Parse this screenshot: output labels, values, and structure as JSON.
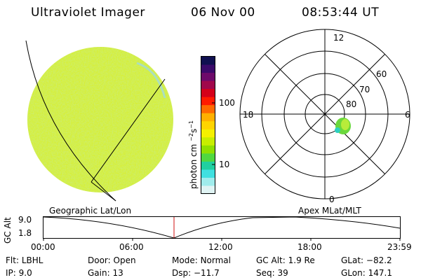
{
  "header": {
    "title": "Ultraviolet Imager",
    "date": "06 Nov 00",
    "time": "08:53:44 UT"
  },
  "colorbar": {
    "unit_label": "photon cm",
    "unit_exp1": "−2",
    "unit_mid": "s",
    "unit_exp2": "−1",
    "ticks": [
      "100",
      "10"
    ],
    "colors": [
      "#101050",
      "#3b0a6a",
      "#6d0a6a",
      "#a0084b",
      "#d4001a",
      "#ff1a00",
      "#ff6a00",
      "#ffb000",
      "#ffd400",
      "#f5f000",
      "#c8ee00",
      "#90e000",
      "#50d840",
      "#20d0a0",
      "#40e0e0",
      "#a0ecec",
      "#e0f4f4"
    ]
  },
  "left_image": {
    "label": "Geographic Lat/Lon",
    "disk_color": "#d6ef3a"
  },
  "polar_plot": {
    "label": "Apex MLat/MLT",
    "mlt_labels": {
      "top": "12",
      "left": "18",
      "right": "6",
      "bottom": "0"
    },
    "mlat_labels": [
      "60",
      "70",
      "80"
    ],
    "blob_color": "#6ad83c"
  },
  "alt_plot": {
    "ylabel": "GC Alt",
    "y_ticks": [
      "9.0",
      "1.8"
    ],
    "x_ticks": [
      "00:00",
      "06:00",
      "12:00",
      "18:00",
      "23:59"
    ]
  },
  "footer": {
    "flt_label": "Flt:",
    "flt_value": "LBHL",
    "ip_label": "IP:",
    "ip_value": "9.0",
    "door_label": "Door:",
    "door_value": "Open",
    "gain_label": "Gain:",
    "gain_value": "13",
    "mode_label": "Mode:",
    "mode_value": "Normal",
    "dsp_label": "Dsp:",
    "dsp_value": "−11.7",
    "gcalt_label": "GC Alt:",
    "gcalt_value": "1.9 Re",
    "seq_label": "Seq:",
    "seq_value": "39",
    "glat_label": "GLat:",
    "glat_value": "−82.2",
    "glon_label": "GLon:",
    "glon_value": "147.1"
  }
}
